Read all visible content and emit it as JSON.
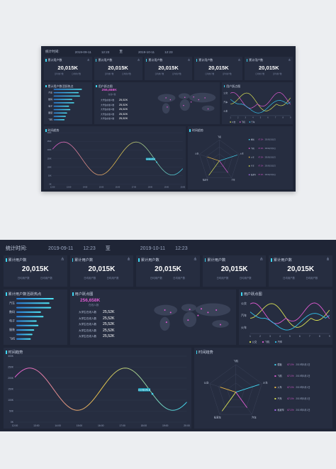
{
  "header": {
    "label": "统计时间:",
    "start_date": "2019-09-11",
    "start_time": "12:23",
    "separator": "至",
    "end_date": "2019-10-11",
    "end_time": "12:23"
  },
  "kpis": [
    {
      "title": "累计用户数",
      "value": "20,015K",
      "sub_left": "日均用户数",
      "sub_right": "日均用户数",
      "icon": "share-icon"
    },
    {
      "title": "累计用户数",
      "value": "20,015K",
      "sub_left": "日均用户数",
      "sub_right": "日均用户数",
      "icon": "share-icon"
    },
    {
      "title": "累计用户数",
      "value": "20,015K",
      "sub_left": "日均用户数",
      "sub_right": "日均用户数",
      "icon": "share-icon"
    },
    {
      "title": "累计用户数",
      "value": "20,015K",
      "sub_left": "日均用户数",
      "sub_right": "日均用户数",
      "icon": "share-icon"
    },
    {
      "title": "累计用户数",
      "value": "20,015K",
      "sub_left": "日均用户数",
      "sub_right": "日均用户数",
      "icon": "share-icon"
    }
  ],
  "hot": {
    "title": "累计用户数活跃热点",
    "items": [
      {
        "label": "",
        "value": 0.88
      },
      {
        "label": "汽车",
        "value": 0.78
      },
      {
        "label": "",
        "value": 0.82
      },
      {
        "label": "数码",
        "value": 0.58
      },
      {
        "label": "",
        "value": 0.64
      },
      {
        "label": "电子",
        "value": 0.48
      },
      {
        "label": "",
        "value": 0.52
      },
      {
        "label": "服装",
        "value": 0.42
      },
      {
        "label": "",
        "value": 0.38
      },
      {
        "label": "飞机",
        "value": 0.34
      }
    ]
  },
  "map": {
    "title": "用户跃点图",
    "total": "256,658K",
    "total_label": "在线人数",
    "rows": [
      {
        "label": "大学生在线人数",
        "value": "25,52K"
      },
      {
        "label": "大学生在线人数",
        "value": "25,52K"
      },
      {
        "label": "大学生在线人数",
        "value": "25,52K"
      },
      {
        "label": "大学生在线人数",
        "value": "25,52K"
      },
      {
        "label": "大学生在线人数",
        "value": "25,52K"
      }
    ]
  },
  "scatter": {
    "title": "用户跃点图",
    "y_labels": [
      "公交",
      "汽车",
      "火车"
    ],
    "x_labels": [
      "1",
      "2",
      "3",
      "4",
      "5",
      "6",
      "7",
      "8",
      "9"
    ],
    "legend": [
      "公交",
      "飞机",
      "汽车"
    ],
    "colors": [
      "#d9e155",
      "#e05bd3",
      "#33c4ee"
    ]
  },
  "trend": {
    "title": "时间趋势",
    "y_labels": [
      "300K",
      "250K",
      "200K",
      "150K",
      "100K",
      "50K",
      "0K"
    ],
    "x_labels": [
      "12:00",
      "13:00",
      "14:00",
      "15:00",
      "16:00",
      "17:00",
      "18:00",
      "19:00",
      "20:00"
    ],
    "tooltip": "2019年5月1日"
  },
  "radar": {
    "title": "时间趋势",
    "axes": [
      "飞机",
      "火车",
      "汽车",
      "私家车",
      "公交"
    ],
    "legend": [
      {
        "name": "模板",
        "pct": "67.1%",
        "date": "2019年5月1日",
        "color": "#3fd7f2"
      },
      {
        "name": "飞机",
        "pct": "67.1%",
        "date": "2019年5月1日",
        "color": "#e05bd3"
      },
      {
        "name": "火车",
        "pct": "67.1%",
        "date": "2019年5月1日",
        "color": "#e8b645"
      },
      {
        "name": "汽车",
        "pct": "67.1%",
        "date": "2019年5月1日",
        "color": "#d9e155"
      },
      {
        "name": "私家车",
        "pct": "67.1%",
        "date": "2019年5月1日",
        "color": "#a86bf0"
      }
    ]
  },
  "colors": {
    "bg": "#1f2536",
    "panel": "#262d40",
    "accent": "#3fd7f2",
    "pink": "#e05bd3",
    "yellow": "#d9e155"
  }
}
